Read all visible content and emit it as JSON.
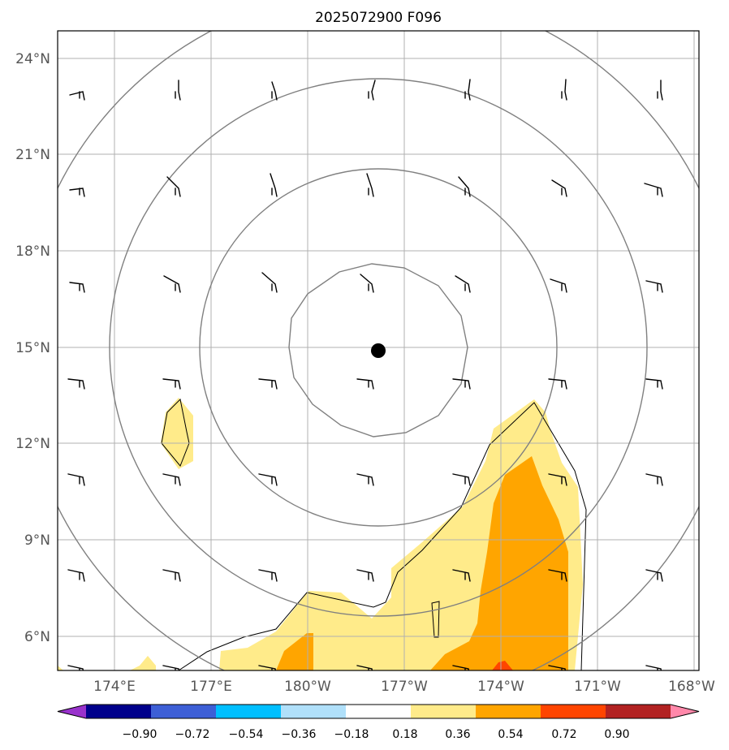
{
  "title": "2025072900 F096",
  "map": {
    "lat_ticks": [
      "24°N",
      "21°N",
      "18°N",
      "15°N",
      "12°N",
      "9°N",
      "6°N"
    ],
    "lon_ticks": [
      "174°E",
      "177°E",
      "180°W",
      "177°W",
      "174°W",
      "171°W",
      "168°W"
    ],
    "center_marker": {
      "lat": 15,
      "lon": "177.8°W"
    },
    "range_rings": 4,
    "grid": true
  },
  "colorbar": {
    "labels": [
      "−0.90",
      "−0.72",
      "−0.54",
      "−0.36",
      "−0.18",
      "0.18",
      "0.36",
      "0.54",
      "0.72",
      "0.90"
    ],
    "colors": [
      "#9932cc",
      "#00008b",
      "#3d5fd6",
      "#00bfff",
      "#b0e0fa",
      "#ffffff",
      "#ffeb8a",
      "#ffa500",
      "#ff4500",
      "#b22222",
      "#ff88aa"
    ]
  }
}
